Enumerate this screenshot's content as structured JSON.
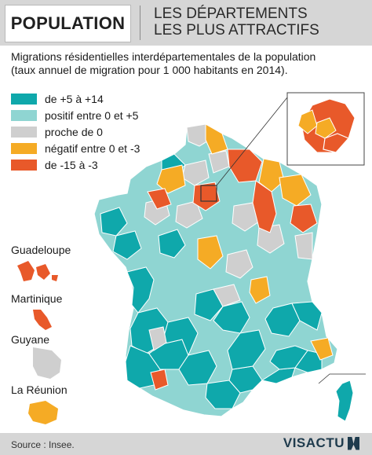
{
  "header": {
    "title": "POPULATION",
    "subtitle_line1": "LES DÉPARTEMENTS",
    "subtitle_line2": "LES PLUS ATTRACTIFS"
  },
  "description": {
    "line1": "Migrations résidentielles interdépartementales de la population",
    "line2": "(taux annuel de migration pour 1 000 habitants en 2014)."
  },
  "legend": [
    {
      "label": "de +5 à +14",
      "color": "#0fa8ab"
    },
    {
      "label": "positif entre 0 et +5",
      "color": "#8fd5d2"
    },
    {
      "label": "proche de 0",
      "color": "#cfcfcf"
    },
    {
      "label": "négatif entre 0 et -3",
      "color": "#f5ab25"
    },
    {
      "label": "de -15 à -3",
      "color": "#e8592a"
    }
  ],
  "territories": {
    "guadeloupe": {
      "label": "Guadeloupe",
      "color": "#e8592a"
    },
    "martinique": {
      "label": "Martinique",
      "color": "#e8592a"
    },
    "guyane": {
      "label": "Guyane",
      "color": "#cfcfcf"
    },
    "reunion": {
      "label": "La Réunion",
      "color": "#f5ab25"
    }
  },
  "footer": {
    "source": "Source : Insee.",
    "brand": "VISACTU"
  }
}
